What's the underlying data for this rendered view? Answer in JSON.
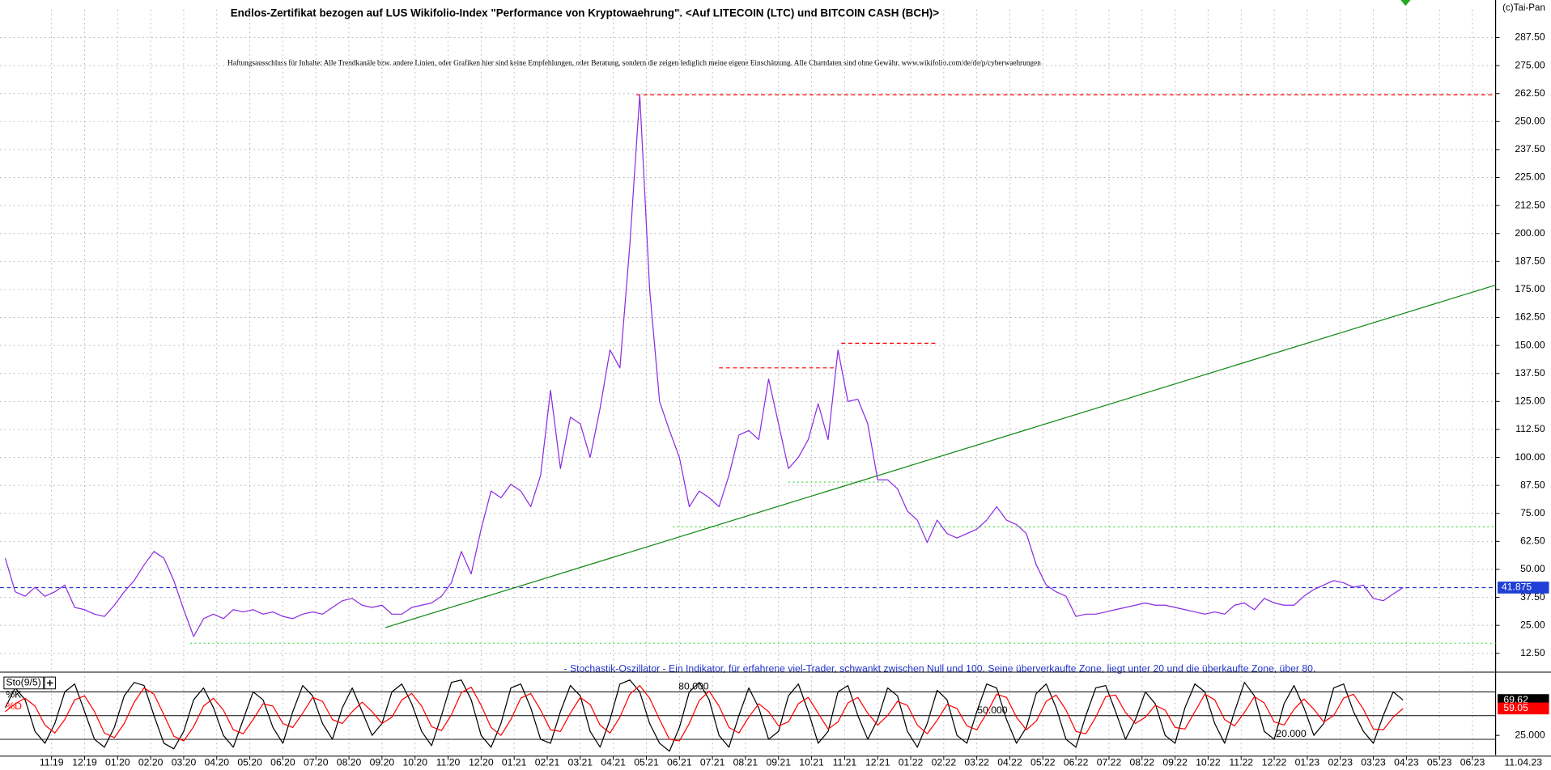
{
  "chart_data": [
    {
      "type": "line",
      "title": "Endlos-Zertifikat bezogen auf LUS Wikifolio-Index \"Performance von Kryptowaehrung\". <Auf LITECOIN (LTC) und BITCOIN CASH (BCH)>",
      "subtitle": "Haftungsausschluss für Inhalte: Alle Trendkanäle bzw. andere Linien, oder Grafiken hier sind keine Empfehlungen, oder Beratung, sondern die zeigen lediglich meine eigene Einschätzung. Alle Chartdaten sind ohne Gewähr. www.wikifolio.com/de/de/p/cyberwaehrungen",
      "source": "(c)Tai-Pan",
      "grid": true,
      "xlim": [
        -1.56,
        43.7
      ],
      "ylim": [
        5,
        300
      ],
      "yticks": [
        {
          "value": 12.5,
          "label": "12.50"
        },
        {
          "value": 25,
          "label": "25.00"
        },
        {
          "value": 37.5,
          "label": "37.50"
        },
        {
          "value": 50,
          "label": "50.00"
        },
        {
          "value": 62.5,
          "label": "62.50"
        },
        {
          "value": 75,
          "label": "75.00"
        },
        {
          "value": 87.5,
          "label": "87.50"
        },
        {
          "value": 100,
          "label": "100.00"
        },
        {
          "value": 112.5,
          "label": "112.50"
        },
        {
          "value": 125,
          "label": "125.00"
        },
        {
          "value": 137.5,
          "label": "137.50"
        },
        {
          "value": 150,
          "label": "150.00"
        },
        {
          "value": 162.5,
          "label": "162.50"
        },
        {
          "value": 175,
          "label": "175.00"
        },
        {
          "value": 187.5,
          "label": "187.50"
        },
        {
          "value": 200,
          "label": "200.00"
        },
        {
          "value": 212.5,
          "label": "212.50"
        },
        {
          "value": 225,
          "label": "225.00"
        },
        {
          "value": 237.5,
          "label": "237.50"
        },
        {
          "value": 250,
          "label": "250.00"
        },
        {
          "value": 262.5,
          "label": "262.50"
        },
        {
          "value": 275,
          "label": "275.00"
        },
        {
          "value": 287.5,
          "label": "287.50"
        }
      ],
      "x": [
        -1.4,
        -1.1,
        -0.8,
        -0.5,
        -0.2,
        0.1,
        0.4,
        0.7,
        1,
        1.3,
        1.6,
        1.9,
        2.2,
        2.5,
        2.8,
        3.1,
        3.4,
        3.7,
        4,
        4.3,
        4.6,
        4.9,
        5.2,
        5.5,
        5.8,
        6.1,
        6.4,
        6.7,
        7,
        7.3,
        7.6,
        7.9,
        8.2,
        8.5,
        8.8,
        9.1,
        9.4,
        9.7,
        10,
        10.3,
        10.6,
        10.9,
        11.2,
        11.5,
        11.8,
        12.1,
        12.4,
        12.7,
        13,
        13.3,
        13.6,
        13.9,
        14.2,
        14.5,
        14.8,
        15.1,
        15.4,
        15.7,
        16,
        16.3,
        16.6,
        16.9,
        17.2,
        17.5,
        17.8,
        18.1,
        18.4,
        18.7,
        19,
        19.3,
        19.6,
        19.9,
        20.2,
        20.5,
        20.8,
        21.1,
        21.4,
        21.7,
        22,
        22.3,
        22.6,
        22.9,
        23.2,
        23.5,
        23.8,
        24.1,
        24.4,
        24.7,
        25,
        25.3,
        25.6,
        25.9,
        26.2,
        26.5,
        26.8,
        27.1,
        27.4,
        27.7,
        28,
        28.3,
        28.6,
        28.9,
        29.2,
        29.5,
        29.8,
        30.1,
        30.4,
        30.7,
        31,
        31.3,
        31.6,
        31.9,
        32.2,
        32.5,
        32.8,
        33.1,
        33.4,
        33.7,
        34,
        34.3,
        34.6,
        34.9,
        35.2,
        35.5,
        35.8,
        36.1,
        36.4,
        36.7,
        37,
        37.3,
        37.6,
        37.9,
        38.2,
        38.5,
        38.8,
        39.1,
        39.4,
        39.7,
        40,
        40.3,
        40.6,
        40.9
      ],
      "series": [
        {
          "color": "#8a2be2",
          "last_color": "#1f3fd6",
          "values": [
            55,
            40,
            38,
            42,
            38,
            40,
            43,
            33,
            32,
            30,
            29,
            34,
            40,
            45,
            52,
            58,
            55,
            45,
            32,
            20,
            28,
            30,
            28,
            32,
            31,
            32,
            30,
            31,
            29,
            28,
            30,
            31,
            30,
            33,
            36,
            37,
            34,
            33,
            34,
            30,
            30,
            33,
            34,
            35,
            38,
            44,
            58,
            48,
            68,
            85,
            82,
            88,
            85,
            78,
            92,
            130,
            95,
            118,
            115,
            100,
            122,
            148,
            140,
            195,
            262,
            175,
            125,
            112,
            100,
            78,
            85,
            82,
            78,
            92,
            110,
            112,
            108,
            135,
            115,
            95,
            100,
            108,
            124,
            108,
            148,
            125,
            126,
            115,
            90,
            90,
            86,
            76,
            72,
            62,
            72,
            66,
            64,
            66,
            68,
            72,
            78,
            72,
            70,
            66,
            52,
            43,
            40,
            38,
            29,
            30,
            30,
            31,
            32,
            33,
            34,
            35,
            34,
            34,
            33,
            32,
            31,
            30,
            31,
            30,
            34,
            35,
            32,
            37,
            35,
            34,
            34,
            38,
            41,
            43,
            45,
            44,
            42,
            43,
            37,
            36,
            39,
            41.875
          ]
        }
      ],
      "lines": [
        {
          "x": [
            17.7,
            43.7
          ],
          "y": [
            262,
            262
          ],
          "color": "#ff0000",
          "dash": "dashed"
        },
        {
          "x": [
            20.2,
            23.7
          ],
          "y": [
            140,
            140
          ],
          "color": "#ff0000",
          "dash": "dashed"
        },
        {
          "x": [
            23.9,
            26.8
          ],
          "y": [
            151,
            151
          ],
          "color": "#ff0000",
          "dash": "dashed"
        },
        {
          "x": [
            22.3,
            25.2
          ],
          "y": [
            89,
            89
          ],
          "color": "#33dd33",
          "dash": "dotted"
        },
        {
          "x": [
            18.8,
            43.7
          ],
          "y": [
            69,
            69
          ],
          "color": "#33dd33",
          "dash": "dotted"
        },
        {
          "x": [
            -1.56,
            43.7
          ],
          "y": [
            41.875,
            41.875
          ],
          "color": "#2233cc",
          "dash": "dashed"
        },
        {
          "x": [
            4.2,
            43.7
          ],
          "y": [
            17,
            17
          ],
          "color": "#33dd33",
          "dash": "dotted"
        },
        {
          "x": [
            10.1,
            43.7
          ],
          "y": [
            24,
            177
          ],
          "color": "#118811",
          "dash": "solid"
        }
      ]
    },
    {
      "type": "line",
      "title": "- Stochastik-Oszillator - Ein Indikator, für erfahrene viel-Trader, schwankt zwischen Null und 100. Seine überverkaufte Zone, liegt unter 20 und die überkaufte Zone, über 80.",
      "label": "Sto(9/5)",
      "date_label": "11.04.23",
      "xlim": [
        -1.56,
        43.7
      ],
      "ylim": [
        0,
        100
      ],
      "yticks": [
        {
          "value": 25,
          "label": "25.000"
        }
      ],
      "levels": [
        {
          "value": 80,
          "label": "80.000"
        },
        {
          "value": 50,
          "label": "50.000"
        },
        {
          "value": 20,
          "label": "20.000"
        }
      ],
      "xticks": [
        {
          "value": 0,
          "label": "11.19"
        },
        {
          "value": 1,
          "label": "12.19"
        },
        {
          "value": 2,
          "label": "01.20"
        },
        {
          "value": 3,
          "label": "02.20"
        },
        {
          "value": 4,
          "label": "03.20"
        },
        {
          "value": 5,
          "label": "04.20"
        },
        {
          "value": 6,
          "label": "05.20"
        },
        {
          "value": 7,
          "label": "06.20"
        },
        {
          "value": 8,
          "label": "07.20"
        },
        {
          "value": 9,
          "label": "08.20"
        },
        {
          "value": 10,
          "label": "09.20"
        },
        {
          "value": 11,
          "label": "10.20"
        },
        {
          "value": 12,
          "label": "11.20"
        },
        {
          "value": 13,
          "label": "12.20"
        },
        {
          "value": 14,
          "label": "01.21"
        },
        {
          "value": 15,
          "label": "02.21"
        },
        {
          "value": 16,
          "label": "03.21"
        },
        {
          "value": 17,
          "label": "04.21"
        },
        {
          "value": 18,
          "label": "05.21"
        },
        {
          "value": 19,
          "label": "06.21"
        },
        {
          "value": 20,
          "label": "07.21"
        },
        {
          "value": 21,
          "label": "08.21"
        },
        {
          "value": 22,
          "label": "09.21"
        },
        {
          "value": 23,
          "label": "10.21"
        },
        {
          "value": 24,
          "label": "11.21"
        },
        {
          "value": 25,
          "label": "12.21"
        },
        {
          "value": 26,
          "label": "01.22"
        },
        {
          "value": 27,
          "label": "02.22"
        },
        {
          "value": 28,
          "label": "03.22"
        },
        {
          "value": 29,
          "label": "04.22"
        },
        {
          "value": 30,
          "label": "05.22"
        },
        {
          "value": 31,
          "label": "06.22"
        },
        {
          "value": 32,
          "label": "07.22"
        },
        {
          "value": 33,
          "label": "08.22"
        },
        {
          "value": 34,
          "label": "09.22"
        },
        {
          "value": 35,
          "label": "10.22"
        },
        {
          "value": 36,
          "label": "11.22"
        },
        {
          "value": 37,
          "label": "12.22"
        },
        {
          "value": 38,
          "label": "01.23"
        },
        {
          "value": 39,
          "label": "02.23"
        },
        {
          "value": 40,
          "label": "03.23"
        },
        {
          "value": 41,
          "label": "04.23"
        },
        {
          "value": 42,
          "label": "05.23"
        },
        {
          "value": 43,
          "label": "06.23"
        }
      ],
      "x": [
        -1.4,
        -1.1,
        -0.8,
        -0.5,
        -0.2,
        0.1,
        0.4,
        0.7,
        1,
        1.3,
        1.6,
        1.9,
        2.2,
        2.5,
        2.8,
        3.1,
        3.4,
        3.7,
        4,
        4.3,
        4.6,
        4.9,
        5.2,
        5.5,
        5.8,
        6.1,
        6.4,
        6.7,
        7,
        7.3,
        7.6,
        7.9,
        8.2,
        8.5,
        8.8,
        9.1,
        9.4,
        9.7,
        10,
        10.3,
        10.6,
        10.9,
        11.2,
        11.5,
        11.8,
        12.1,
        12.4,
        12.7,
        13,
        13.3,
        13.6,
        13.9,
        14.2,
        14.5,
        14.8,
        15.1,
        15.4,
        15.7,
        16,
        16.3,
        16.6,
        16.9,
        17.2,
        17.5,
        17.8,
        18.1,
        18.4,
        18.7,
        19,
        19.3,
        19.6,
        19.9,
        20.2,
        20.5,
        20.8,
        21.1,
        21.4,
        21.7,
        22,
        22.3,
        22.6,
        22.9,
        23.2,
        23.5,
        23.8,
        24.1,
        24.4,
        24.7,
        25,
        25.3,
        25.6,
        25.9,
        26.2,
        26.5,
        26.8,
        27.1,
        27.4,
        27.7,
        28,
        28.3,
        28.6,
        28.9,
        29.2,
        29.5,
        29.8,
        30.1,
        30.4,
        30.7,
        31,
        31.3,
        31.6,
        31.9,
        32.2,
        32.5,
        32.8,
        33.1,
        33.4,
        33.7,
        34,
        34.3,
        34.6,
        34.9,
        35.2,
        35.5,
        35.8,
        36.1,
        36.4,
        36.7,
        37,
        37.3,
        37.6,
        37.9,
        38.2,
        38.5,
        38.8,
        39.1,
        39.4,
        39.7,
        40,
        40.3,
        40.6,
        40.9
      ],
      "series": [
        {
          "name": "%K",
          "color": "#000000",
          "values": [
            60,
            85,
            70,
            30,
            15,
            40,
            80,
            90,
            55,
            20,
            10,
            35,
            75,
            92,
            88,
            50,
            15,
            8,
            30,
            70,
            85,
            60,
            25,
            10,
            45,
            80,
            70,
            35,
            15,
            55,
            88,
            75,
            40,
            20,
            60,
            85,
            55,
            25,
            40,
            80,
            90,
            65,
            30,
            12,
            50,
            92,
            95,
            70,
            25,
            10,
            40,
            85,
            90,
            60,
            20,
            15,
            55,
            88,
            75,
            30,
            10,
            45,
            90,
            95,
            80,
            40,
            15,
            5,
            35,
            80,
            92,
            70,
            25,
            10,
            50,
            85,
            60,
            20,
            30,
            75,
            90,
            55,
            15,
            30,
            80,
            88,
            50,
            20,
            45,
            85,
            75,
            30,
            10,
            40,
            82,
            70,
            25,
            15,
            55,
            90,
            85,
            45,
            15,
            35,
            78,
            90,
            60,
            20,
            10,
            50,
            85,
            88,
            55,
            20,
            45,
            80,
            65,
            25,
            15,
            60,
            90,
            80,
            40,
            15,
            55,
            92,
            75,
            30,
            20,
            65,
            88,
            60,
            25,
            40,
            85,
            90,
            55,
            30,
            15,
            50,
            80,
            69.62
          ]
        },
        {
          "name": "%D",
          "color": "#ff0000",
          "values": [
            55,
            65,
            72,
            62,
            38,
            28,
            45,
            70,
            75,
            55,
            28,
            22,
            40,
            67,
            85,
            77,
            51,
            24,
            18,
            36,
            62,
            72,
            57,
            32,
            27,
            45,
            65,
            62,
            40,
            35,
            53,
            73,
            68,
            45,
            40,
            55,
            67,
            55,
            40,
            48,
            70,
            78,
            62,
            36,
            31,
            51,
            79,
            86,
            63,
            35,
            25,
            45,
            72,
            78,
            57,
            32,
            30,
            53,
            73,
            64,
            38,
            28,
            48,
            77,
            88,
            72,
            45,
            20,
            18,
            40,
            69,
            81,
            62,
            35,
            28,
            48,
            65,
            55,
            37,
            42,
            65,
            73,
            53,
            33,
            42,
            66,
            73,
            53,
            38,
            50,
            68,
            63,
            38,
            27,
            44,
            64,
            59,
            37,
            32,
            53,
            77,
            73,
            48,
            32,
            43,
            68,
            76,
            57,
            30,
            27,
            48,
            74,
            76,
            54,
            40,
            48,
            63,
            57,
            35,
            33,
            55,
            77,
            70,
            45,
            37,
            54,
            74,
            66,
            42,
            38,
            58,
            71,
            58,
            42,
            50,
            72,
            77,
            58,
            33,
            32,
            48,
            59.05
          ]
        }
      ]
    }
  ]
}
